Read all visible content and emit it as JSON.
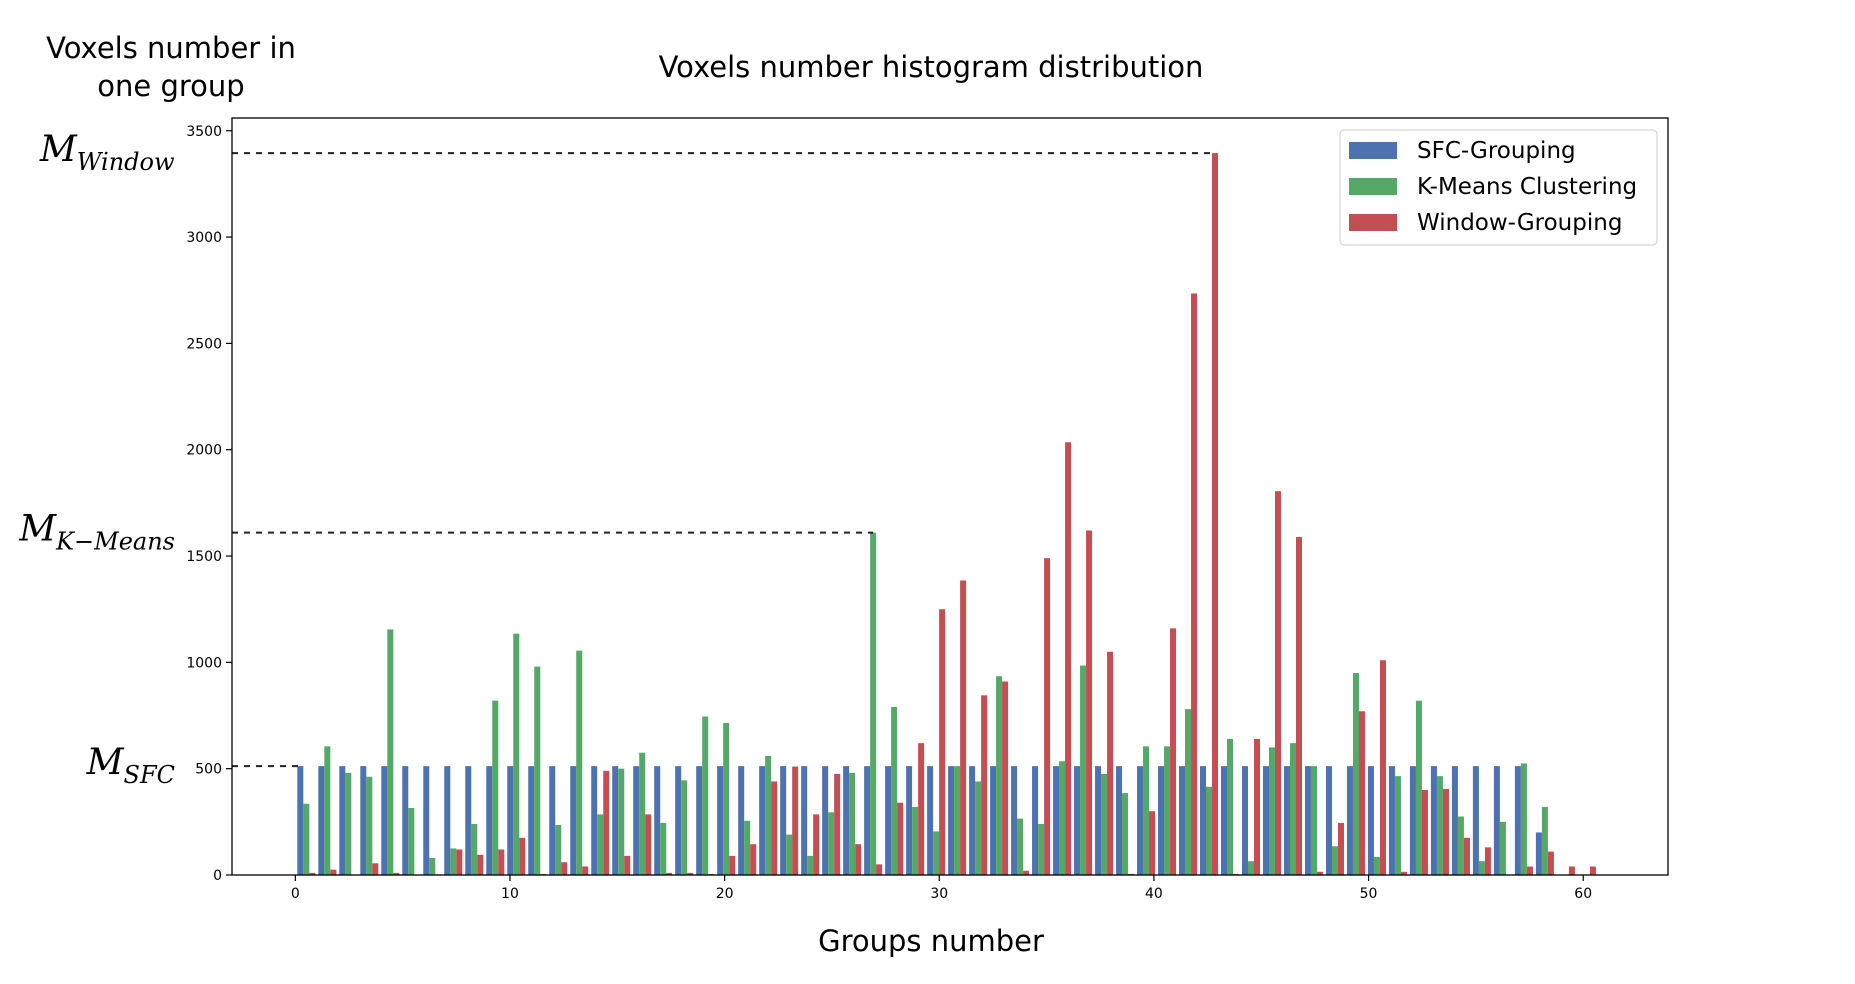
{
  "chart_data": {
    "type": "bar",
    "title": "Voxels number histogram distribution",
    "ylabel": [
      "Voxels number in",
      "one group"
    ],
    "xlabel": "Groups number",
    "xlim": [
      -2.95,
      63.95
    ],
    "ylim": [
      0,
      3560
    ],
    "xticks": [
      0,
      10,
      20,
      30,
      40,
      50,
      60
    ],
    "yticks": [
      0,
      500,
      1000,
      1500,
      2000,
      2500,
      3000,
      3500
    ],
    "grid": false,
    "legend_position": "top-right",
    "groups": 62,
    "series": [
      {
        "name": "SFC-Grouping",
        "color": "#4C72B0",
        "values": [
          512,
          512,
          512,
          512,
          512,
          512,
          512,
          512,
          512,
          512,
          512,
          512,
          512,
          512,
          512,
          512,
          512,
          512,
          512,
          512,
          512,
          512,
          512,
          512,
          512,
          512,
          512,
          512,
          512,
          512,
          512,
          512,
          512,
          512,
          512,
          512,
          512,
          512,
          512,
          512,
          512,
          512,
          512,
          512,
          512,
          512,
          512,
          512,
          512,
          512,
          512,
          512,
          512,
          512,
          512,
          512,
          512,
          512,
          512,
          200,
          0,
          0
        ]
      },
      {
        "name": "K-Means Clustering",
        "color": "#55A868",
        "values": [
          335,
          605,
          480,
          462,
          1155,
          315,
          80,
          125,
          240,
          820,
          1135,
          980,
          235,
          1055,
          285,
          500,
          575,
          245,
          445,
          745,
          715,
          255,
          560,
          190,
          90,
          295,
          480,
          1610,
          790,
          320,
          205,
          512,
          440,
          935,
          265,
          240,
          535,
          985,
          475,
          385,
          605,
          605,
          780,
          415,
          640,
          65,
          600,
          620,
          512,
          135,
          950,
          85,
          465,
          820,
          465,
          275,
          65,
          250,
          525,
          320,
          0,
          0
        ]
      },
      {
        "name": "Window-Grouping",
        "color": "#C44E52",
        "values": [
          10,
          25,
          0,
          55,
          10,
          0,
          3,
          120,
          95,
          120,
          175,
          5,
          60,
          40,
          490,
          90,
          285,
          10,
          10,
          5,
          90,
          145,
          440,
          510,
          285,
          475,
          145,
          50,
          340,
          620,
          1250,
          1385,
          845,
          910,
          20,
          1490,
          2035,
          1620,
          1050,
          5,
          300,
          1160,
          2735,
          3395,
          5,
          640,
          1805,
          1590,
          15,
          245,
          770,
          1010,
          15,
          400,
          405,
          175,
          130,
          0,
          40,
          110,
          40,
          40
        ]
      }
    ],
    "annotations": [
      {
        "label": "M",
        "sub": "Window",
        "value": 3395,
        "series": 2,
        "group": 43
      },
      {
        "label": "M",
        "sub": "K−Means",
        "value": 1610,
        "series": 1,
        "group": 27
      },
      {
        "label": "M",
        "sub": "SFC",
        "value": 512,
        "series": 0,
        "group": 0
      }
    ]
  }
}
